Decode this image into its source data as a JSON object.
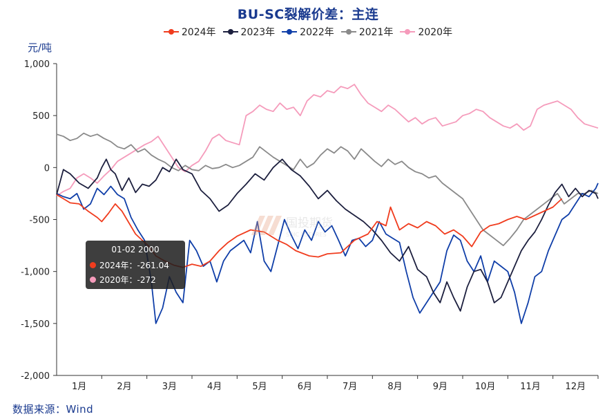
{
  "title": "BU-SC裂解价差：主连",
  "unit": "元/吨",
  "source": "数据来源：Wind",
  "watermark": {
    "cn": "国投期货",
    "en": "SDIC FUTURES"
  },
  "tooltip": {
    "date": "01-02 2000",
    "rows": [
      {
        "label": "2024年：-261.04",
        "color": "#f03c1e"
      },
      {
        "label": "2020年：-272",
        "color": "#f59bbb"
      }
    ]
  },
  "chart_data": {
    "type": "line",
    "ylabel": "元/吨",
    "ylim": [
      -2000,
      1000
    ],
    "yticks": [
      1000,
      500,
      0,
      -500,
      -1000,
      -1500,
      -2000
    ],
    "ytick_labels": [
      "1,000",
      "500",
      "0",
      "-500",
      "-1,000",
      "-1,500",
      "-2,000"
    ],
    "x_categories": [
      "1月",
      "2月",
      "3月",
      "4月",
      "5月",
      "6月",
      "7月",
      "8月",
      "9月",
      "10月",
      "11月",
      "12月"
    ],
    "xlim": [
      0,
      12
    ],
    "grid": false,
    "legend_position": "top",
    "series": [
      {
        "name": "2024年",
        "color": "#f03c1e",
        "x": [
          0,
          0.15,
          0.3,
          0.5,
          0.7,
          0.9,
          1.0,
          1.15,
          1.3,
          1.45,
          1.6,
          1.75,
          1.9,
          2.05,
          2.2,
          2.4,
          2.6,
          2.8,
          3.0,
          3.2,
          3.4,
          3.6,
          3.8,
          4.0,
          4.3,
          4.6,
          4.9,
          5.1,
          5.3,
          5.6,
          5.8,
          6.0,
          6.3,
          6.6,
          6.9,
          7.1,
          7.3,
          7.4,
          7.6,
          7.8,
          8.0,
          8.2,
          8.4,
          8.6,
          8.8,
          9.0,
          9.2,
          9.4,
          9.6,
          9.8,
          10.0,
          10.2,
          10.4,
          10.6,
          10.8,
          11.0,
          11.2
        ],
        "y": [
          -261,
          -300,
          -340,
          -350,
          -420,
          -480,
          -520,
          -440,
          -350,
          -420,
          -530,
          -640,
          -700,
          -760,
          -850,
          -900,
          -940,
          -960,
          -930,
          -950,
          -900,
          -800,
          -720,
          -660,
          -600,
          -620,
          -700,
          -740,
          -800,
          -850,
          -860,
          -830,
          -820,
          -700,
          -640,
          -520,
          -560,
          -380,
          -600,
          -540,
          -580,
          -520,
          -560,
          -640,
          -600,
          -660,
          -760,
          -620,
          -560,
          -540,
          -500,
          -470,
          -500,
          -460,
          -420,
          -380,
          -300
        ]
      },
      {
        "name": "2023年",
        "color": "#1c1f3e",
        "x": [
          0,
          0.15,
          0.3,
          0.5,
          0.7,
          0.9,
          1.0,
          1.1,
          1.2,
          1.3,
          1.45,
          1.6,
          1.75,
          1.9,
          2.05,
          2.2,
          2.35,
          2.5,
          2.65,
          2.8,
          3.0,
          3.2,
          3.4,
          3.6,
          3.8,
          4.0,
          4.2,
          4.4,
          4.6,
          4.8,
          5.0,
          5.2,
          5.4,
          5.6,
          5.8,
          6.0,
          6.2,
          6.4,
          6.6,
          6.8,
          7.0,
          7.2,
          7.4,
          7.6,
          7.8,
          8.0,
          8.2,
          8.35,
          8.5,
          8.65,
          8.8,
          8.95,
          9.1,
          9.25,
          9.4,
          9.55,
          9.7,
          9.85,
          10.0,
          10.15,
          10.3,
          10.45,
          10.6,
          10.75,
          10.9,
          11.05,
          11.2,
          11.35,
          11.5,
          11.65,
          11.8,
          11.95,
          12.0
        ],
        "y": [
          -260,
          -20,
          -60,
          -150,
          -200,
          -100,
          0,
          80,
          -20,
          -60,
          -220,
          -100,
          -240,
          -160,
          -180,
          -120,
          0,
          -40,
          80,
          -20,
          -60,
          -220,
          -300,
          -420,
          -360,
          -250,
          -160,
          -60,
          -120,
          0,
          80,
          -20,
          -80,
          -180,
          -300,
          -220,
          -320,
          -400,
          -460,
          -520,
          -600,
          -700,
          -820,
          -900,
          -760,
          -980,
          -1050,
          -1200,
          -1300,
          -1100,
          -1250,
          -1380,
          -1150,
          -1000,
          -980,
          -1100,
          -1300,
          -1250,
          -1100,
          -950,
          -800,
          -700,
          -620,
          -500,
          -360,
          -240,
          -160,
          -280,
          -200,
          -280,
          -220,
          -250,
          -300
        ]
      },
      {
        "name": "2022年",
        "color": "#0f3ea8",
        "x": [
          0,
          0.15,
          0.3,
          0.45,
          0.6,
          0.75,
          0.9,
          1.05,
          1.2,
          1.35,
          1.5,
          1.65,
          1.8,
          1.95,
          2.1,
          2.2,
          2.35,
          2.5,
          2.65,
          2.8,
          2.95,
          3.1,
          3.25,
          3.4,
          3.55,
          3.7,
          3.85,
          4.0,
          4.15,
          4.3,
          4.45,
          4.6,
          4.75,
          4.9,
          5.05,
          5.2,
          5.35,
          5.5,
          5.65,
          5.8,
          5.95,
          6.1,
          6.25,
          6.4,
          6.55,
          6.7,
          6.85,
          7.0,
          7.15,
          7.3,
          7.45,
          7.6,
          7.75,
          7.9,
          8.05,
          8.2,
          8.35,
          8.5,
          8.65,
          8.8,
          8.95,
          9.1,
          9.25,
          9.4,
          9.55,
          9.7,
          9.85,
          10.0,
          10.15,
          10.3,
          10.45,
          10.6,
          10.75,
          10.9,
          11.05,
          11.2,
          11.35,
          11.5,
          11.65,
          11.8,
          11.95,
          12.0
        ],
        "y": [
          -250,
          -280,
          -300,
          -250,
          -400,
          -350,
          -200,
          -260,
          -180,
          -260,
          -300,
          -480,
          -600,
          -700,
          -1100,
          -1500,
          -1350,
          -1050,
          -1200,
          -1300,
          -700,
          -800,
          -950,
          -900,
          -1100,
          -900,
          -800,
          -750,
          -700,
          -820,
          -520,
          -900,
          -1000,
          -750,
          -500,
          -650,
          -780,
          -600,
          -700,
          -520,
          -620,
          -560,
          -700,
          -850,
          -700,
          -680,
          -760,
          -700,
          -520,
          -640,
          -680,
          -720,
          -1000,
          -1250,
          -1400,
          -1300,
          -1200,
          -1100,
          -800,
          -650,
          -700,
          -900,
          -1000,
          -850,
          -1100,
          -900,
          -950,
          -1000,
          -1200,
          -1500,
          -1300,
          -1050,
          -1000,
          -800,
          -650,
          -500,
          -450,
          -350,
          -250,
          -280,
          -200,
          -150
        ]
      },
      {
        "name": "2021年",
        "color": "#8a8a8a",
        "x": [
          0,
          0.15,
          0.3,
          0.45,
          0.6,
          0.75,
          0.9,
          1.05,
          1.2,
          1.35,
          1.5,
          1.65,
          1.8,
          1.95,
          2.1,
          2.25,
          2.4,
          2.55,
          2.7,
          2.85,
          3.0,
          3.15,
          3.3,
          3.45,
          3.6,
          3.75,
          3.9,
          4.05,
          4.2,
          4.35,
          4.5,
          4.65,
          4.8,
          4.95,
          5.1,
          5.25,
          5.4,
          5.55,
          5.7,
          5.85,
          6.0,
          6.15,
          6.3,
          6.45,
          6.6,
          6.75,
          6.9,
          7.05,
          7.2,
          7.35,
          7.5,
          7.65,
          7.8,
          7.95,
          8.1,
          8.25,
          8.4,
          8.55,
          8.7,
          8.85,
          9.0,
          9.15,
          9.3,
          9.45,
          9.6,
          9.75,
          9.9,
          10.05,
          10.2,
          10.35,
          10.5,
          10.65,
          10.8,
          10.95,
          11.1,
          11.25,
          11.4,
          11.55,
          11.7,
          11.85,
          12.0
        ],
        "y": [
          320,
          300,
          260,
          280,
          330,
          300,
          320,
          280,
          250,
          200,
          180,
          220,
          150,
          180,
          120,
          80,
          50,
          0,
          -30,
          20,
          -20,
          -30,
          20,
          -10,
          0,
          30,
          0,
          20,
          60,
          100,
          200,
          150,
          100,
          60,
          20,
          -20,
          80,
          0,
          40,
          120,
          180,
          140,
          200,
          160,
          80,
          180,
          120,
          60,
          10,
          80,
          30,
          60,
          0,
          -40,
          -60,
          -100,
          -80,
          -150,
          -200,
          -250,
          -300,
          -400,
          -500,
          -600,
          -650,
          -700,
          -750,
          -680,
          -600,
          -500,
          -450,
          -400,
          -350,
          -300,
          -250,
          -350,
          -300,
          -250,
          -250,
          -220,
          -250
        ]
      },
      {
        "name": "2020年",
        "color": "#f59bbb",
        "x": [
          0,
          0.15,
          0.3,
          0.45,
          0.6,
          0.75,
          0.9,
          1.05,
          1.2,
          1.35,
          1.5,
          1.65,
          1.8,
          1.95,
          2.1,
          2.25,
          2.4,
          2.55,
          2.7,
          2.85,
          3.0,
          3.15,
          3.3,
          3.45,
          3.6,
          3.75,
          3.9,
          4.05,
          4.2,
          4.35,
          4.5,
          4.65,
          4.8,
          4.95,
          5.1,
          5.25,
          5.4,
          5.55,
          5.7,
          5.85,
          6.0,
          6.15,
          6.3,
          6.45,
          6.6,
          6.75,
          6.9,
          7.05,
          7.2,
          7.35,
          7.5,
          7.65,
          7.8,
          7.95,
          8.1,
          8.25,
          8.4,
          8.55,
          8.7,
          8.85,
          9.0,
          9.15,
          9.3,
          9.45,
          9.6,
          9.75,
          9.9,
          10.05,
          10.2,
          10.35,
          10.5,
          10.65,
          10.8,
          10.95,
          11.1,
          11.25,
          11.4,
          11.55,
          11.7,
          11.85,
          12.0
        ],
        "y": [
          -272,
          -230,
          -200,
          -100,
          -60,
          -100,
          -150,
          -80,
          -20,
          60,
          100,
          140,
          180,
          220,
          250,
          300,
          200,
          100,
          0,
          -40,
          20,
          60,
          160,
          280,
          320,
          260,
          240,
          220,
          500,
          540,
          600,
          560,
          540,
          620,
          560,
          580,
          500,
          640,
          700,
          680,
          740,
          720,
          780,
          760,
          800,
          700,
          620,
          580,
          540,
          600,
          560,
          500,
          440,
          480,
          420,
          460,
          480,
          400,
          420,
          440,
          500,
          520,
          560,
          540,
          480,
          440,
          400,
          380,
          420,
          360,
          400,
          560,
          600,
          620,
          640,
          600,
          560,
          480,
          420,
          400,
          380
        ]
      }
    ]
  }
}
